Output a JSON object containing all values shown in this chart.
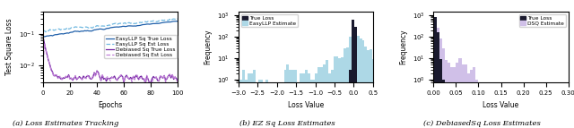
{
  "fig_width": 6.4,
  "fig_height": 1.43,
  "dpi": 100,
  "subplot1": {
    "xlabel": "Epochs",
    "ylabel": "Test Square Loss",
    "xlim": [
      0,
      100
    ],
    "ylim_log": [
      0.003,
      0.5
    ],
    "legend_labels": [
      "EasyLLP Sq True Loss",
      "EasyLLP Sq Est Loss",
      "Debiased Sq True Loss",
      "Debiased Sq Est Loss"
    ],
    "colors_dark_blue": "#2060aa",
    "colors_light_blue": "#70b8e0",
    "colors_dark_purple": "#7020a0",
    "colors_light_purple": "#c080d8",
    "caption": "(a) Loss Estimates Tracking"
  },
  "subplot2": {
    "xlabel": "Loss Value",
    "ylabel": "Frequency",
    "legend_labels": [
      "True Loss",
      "EasyLLP Estimate"
    ],
    "color_true": "#1a1a2e",
    "color_est": "#add8e6",
    "xlim": [
      -3.0,
      0.5
    ],
    "ylim": [
      0.8,
      1500
    ],
    "caption": "(b) EZ Sq Loss Estimates"
  },
  "subplot3": {
    "xlabel": "Loss Value",
    "ylabel": "Frequency",
    "legend_labels": [
      "True Loss",
      "DSQ Estimate"
    ],
    "color_true": "#1a1a2e",
    "color_est": "#d0c0e8",
    "xlim": [
      0.0,
      0.3
    ],
    "ylim": [
      0.8,
      1500
    ],
    "caption": "(c) DebiasedSq Loss Estimates"
  },
  "caption_fontsize": 6.0,
  "tick_fontsize": 5.0,
  "label_fontsize": 5.5,
  "legend_fontsize": 4.2
}
